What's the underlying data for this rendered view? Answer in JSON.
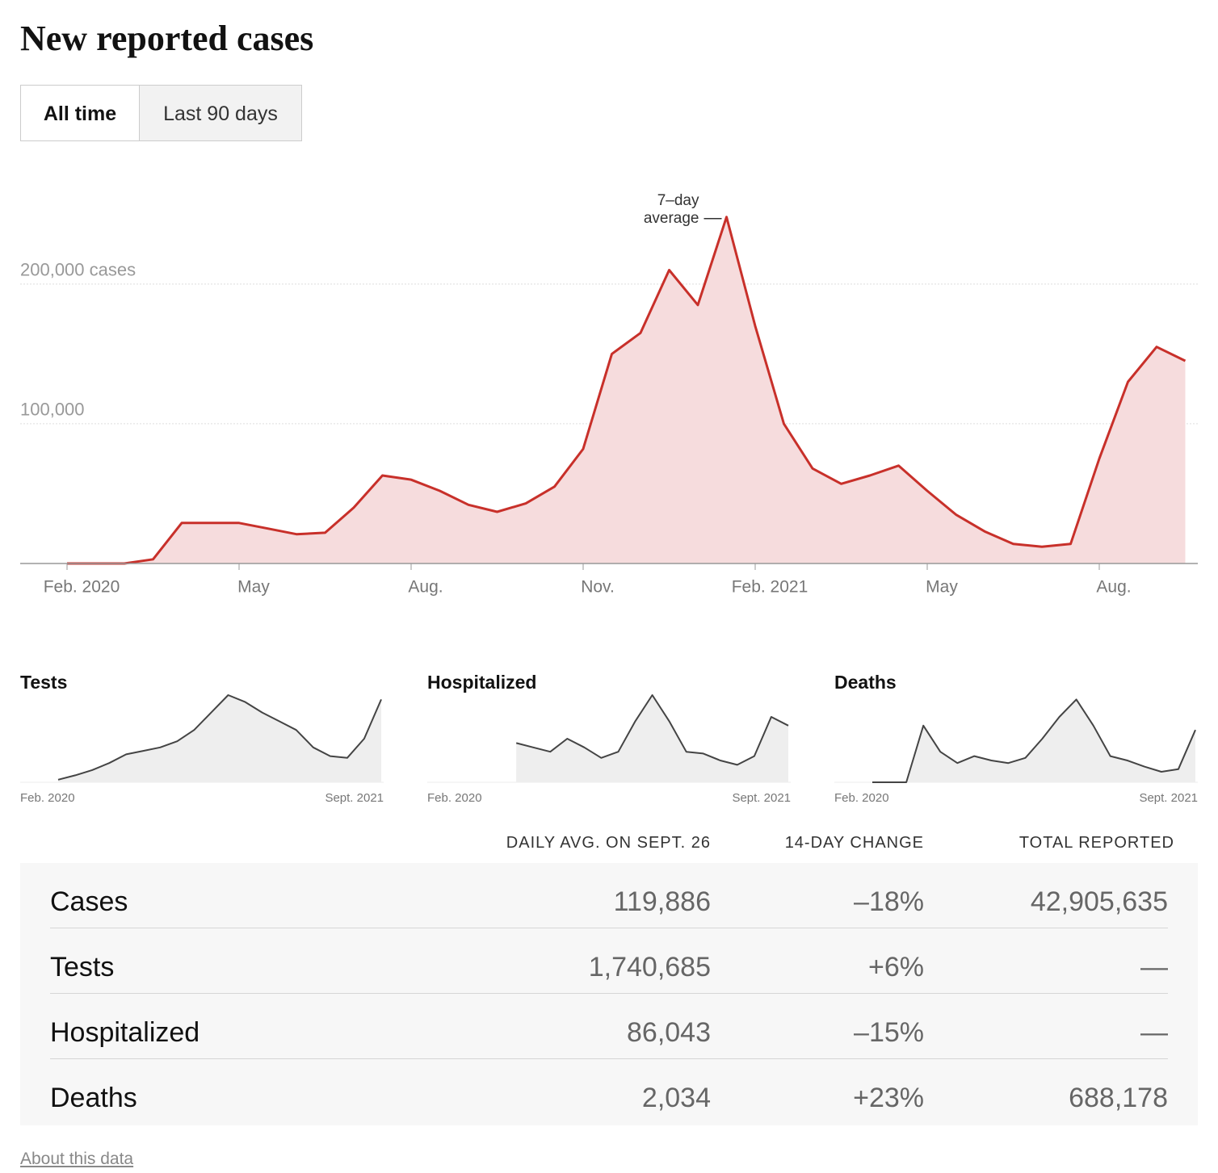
{
  "header": {
    "title": "New reported cases",
    "buttons": [
      "All time",
      "Last 90 days"
    ]
  },
  "chart_data": {
    "type": "area",
    "title": "New reported cases",
    "annotation": [
      "7–day",
      "average"
    ],
    "color": "#c8302a",
    "fill": "#f6dcdd",
    "categories": [
      "Feb. 2020",
      null,
      null,
      null,
      null,
      null,
      "May",
      null,
      null,
      null,
      null,
      null,
      "Aug.",
      null,
      null,
      null,
      null,
      null,
      "Nov.",
      null,
      null,
      null,
      null,
      null,
      "Feb. 2021",
      null,
      null,
      null,
      null,
      null,
      "May",
      null,
      null,
      null,
      null,
      null,
      "Aug.",
      null,
      null,
      null
    ],
    "values": [
      0,
      0,
      0,
      3000,
      29000,
      29000,
      29000,
      25000,
      21000,
      22000,
      40000,
      63000,
      60000,
      52000,
      42000,
      37000,
      43000,
      55000,
      82000,
      150000,
      165000,
      210000,
      185000,
      248000,
      170000,
      100000,
      68000,
      57000,
      63000,
      70000,
      52000,
      35000,
      23000,
      14000,
      12000,
      14000,
      75000,
      130000,
      155000,
      145000
    ],
    "ylim": [
      0,
      260000
    ],
    "yticks": [
      {
        "value": 100000,
        "label": "100,000"
      },
      {
        "value": 200000,
        "label": "200,000 cases"
      }
    ],
    "grid": true
  },
  "sparklines": [
    {
      "type": "area",
      "title": "Tests",
      "xlabels": [
        "Feb. 2020",
        "Sept. 2021"
      ],
      "ylim": [
        0,
        100
      ],
      "values": [
        3,
        8,
        14,
        22,
        32,
        36,
        40,
        47,
        60,
        80,
        100,
        92,
        80,
        70,
        60,
        40,
        30,
        28,
        50,
        95
      ]
    },
    {
      "type": "area",
      "title": "Hospitalized",
      "xlabels": [
        "Feb. 2020",
        "Sept. 2021"
      ],
      "ylim": [
        0,
        100
      ],
      "values": [
        null,
        null,
        null,
        45,
        40,
        35,
        50,
        40,
        28,
        35,
        70,
        100,
        70,
        35,
        33,
        25,
        20,
        30,
        75,
        65
      ]
    },
    {
      "type": "area",
      "title": "Deaths",
      "xlabels": [
        "Feb. 2020",
        "Sept. 2021"
      ],
      "ylim": [
        0,
        100
      ],
      "values": [
        0,
        0,
        0,
        65,
        35,
        22,
        30,
        25,
        22,
        28,
        50,
        75,
        95,
        65,
        30,
        25,
        18,
        12,
        15,
        60
      ]
    }
  ],
  "table": {
    "headers": [
      "DAILY AVG. ON SEPT. 26",
      "14-DAY CHANGE",
      "TOTAL REPORTED"
    ],
    "rows": [
      [
        "Cases",
        "119,886",
        "–18%",
        "42,905,635"
      ],
      [
        "Tests",
        "1,740,685",
        "+6%",
        "—"
      ],
      [
        "Hospitalized",
        "86,043",
        "–15%",
        "—"
      ],
      [
        "Deaths",
        "2,034",
        "+23%",
        "688,178"
      ]
    ]
  },
  "footer": {
    "link": "About this data"
  }
}
